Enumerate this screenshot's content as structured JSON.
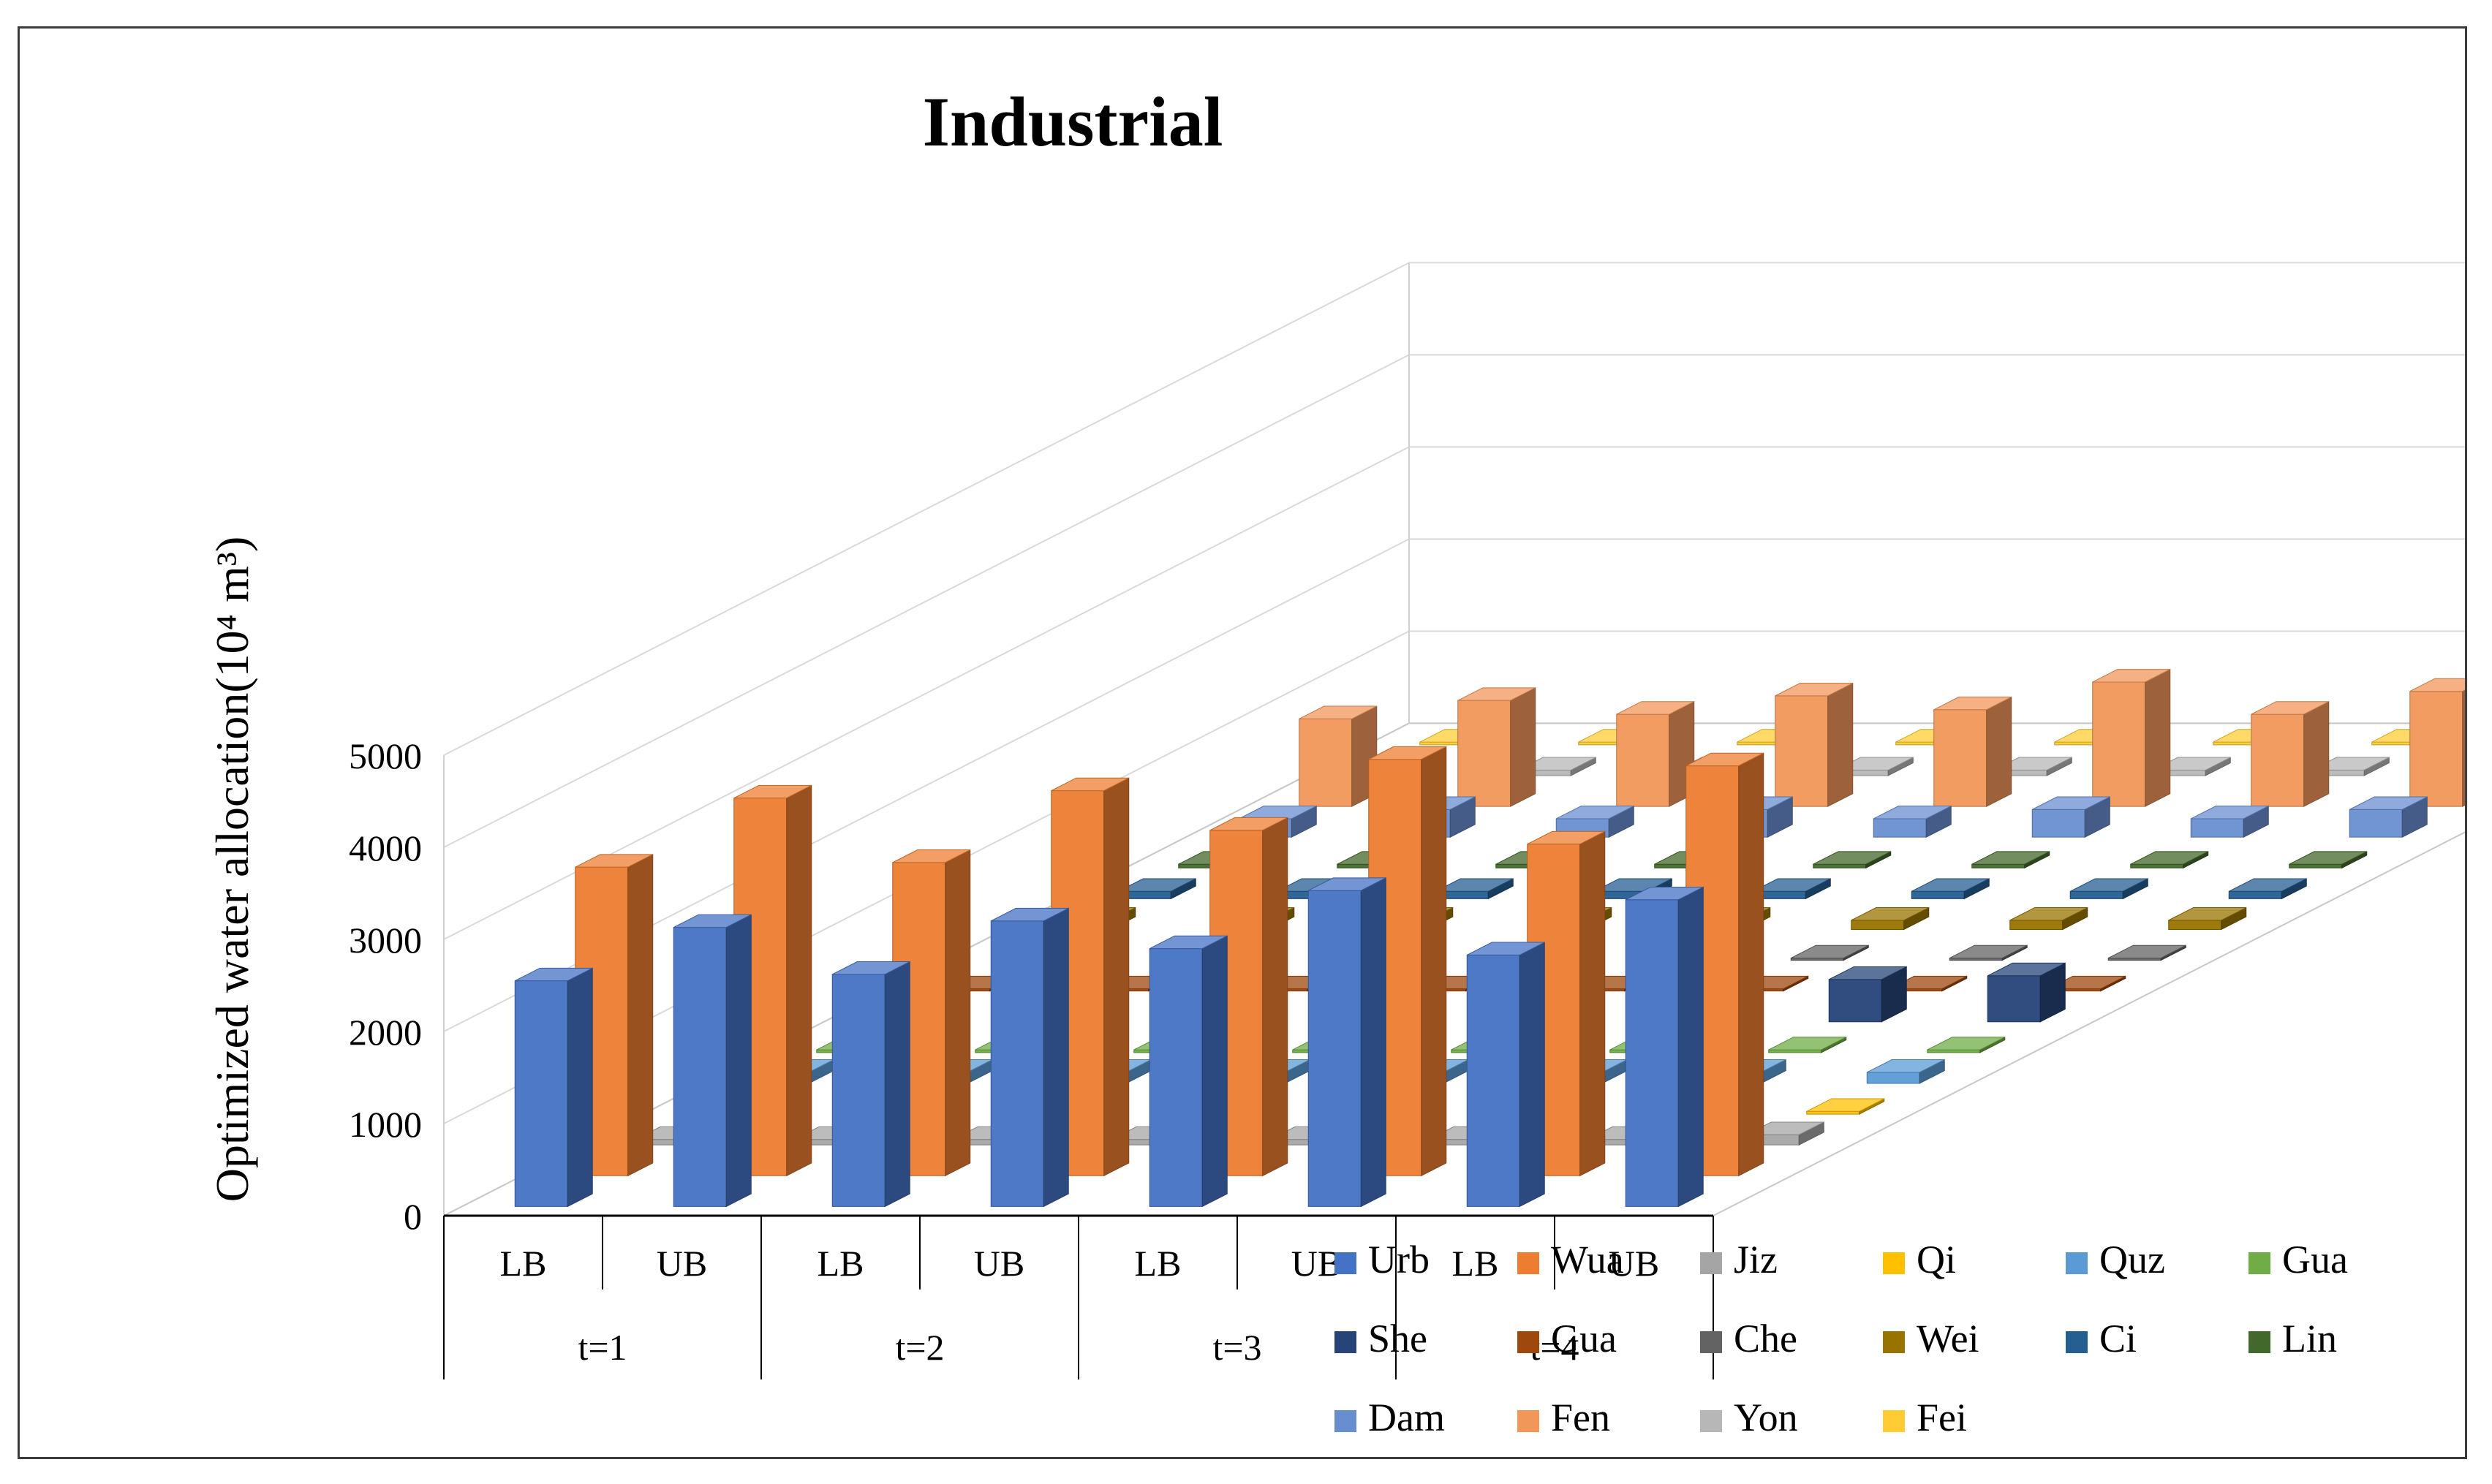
{
  "chart_data": {
    "type": "bar",
    "subtype": "3d-column",
    "title": "Industrial",
    "ylabel": "Optimized water allocation(10⁴ m³)",
    "xlabel": "",
    "ylim": [
      0,
      5000
    ],
    "yticks": [
      0,
      1000,
      2000,
      3000,
      4000,
      5000
    ],
    "periods": [
      "t=1",
      "t=2",
      "t=3",
      "t=4"
    ],
    "bounds": [
      "LB",
      "UB"
    ],
    "categories": [
      "LB",
      "UB",
      "LB",
      "UB",
      "LB",
      "UB",
      "LB",
      "UB"
    ],
    "series": [
      {
        "name": "Urb",
        "color": "#4472C4",
        "values": [
          2450,
          3030,
          2520,
          3100,
          2800,
          3430,
          2730,
          3330
        ]
      },
      {
        "name": "Wua",
        "color": "#ED7D31",
        "values": [
          3350,
          4100,
          3400,
          4180,
          3750,
          4520,
          3600,
          4450
        ]
      },
      {
        "name": "Jiz",
        "color": "#A5A5A5",
        "values": [
          60,
          60,
          60,
          60,
          60,
          60,
          60,
          110
        ]
      },
      {
        "name": "Qi",
        "color": "#FFC000",
        "values": [
          30,
          30,
          30,
          30,
          30,
          30,
          30,
          30
        ]
      },
      {
        "name": "Quz",
        "color": "#5B9BD5",
        "values": [
          120,
          120,
          120,
          120,
          120,
          120,
          120,
          120
        ]
      },
      {
        "name": "Gua",
        "color": "#70AD47",
        "values": [
          30,
          30,
          30,
          30,
          30,
          30,
          30,
          30
        ]
      },
      {
        "name": "She",
        "color": "#264478",
        "values": [
          450,
          500,
          460,
          500,
          460,
          500,
          460,
          500
        ]
      },
      {
        "name": "Gua",
        "color": "#9E480E",
        "values": [
          20,
          20,
          20,
          20,
          20,
          20,
          20,
          20
        ]
      },
      {
        "name": "Che",
        "color": "#636363",
        "values": [
          20,
          20,
          20,
          20,
          20,
          20,
          20,
          20
        ]
      },
      {
        "name": "Wei",
        "color": "#997300",
        "values": [
          100,
          100,
          100,
          100,
          100,
          100,
          100,
          100
        ]
      },
      {
        "name": "Ci",
        "color": "#255E91",
        "values": [
          80,
          80,
          80,
          80,
          80,
          80,
          80,
          80
        ]
      },
      {
        "name": "Lin",
        "color": "#43682B",
        "values": [
          40,
          40,
          40,
          40,
          40,
          40,
          40,
          40
        ]
      },
      {
        "name": "Dam",
        "color": "#698ED0",
        "values": [
          200,
          300,
          200,
          300,
          200,
          300,
          200,
          300
        ]
      },
      {
        "name": "Fen",
        "color": "#F1975A",
        "values": [
          950,
          1150,
          1000,
          1200,
          1050,
          1350,
          1000,
          1250
        ]
      },
      {
        "name": "Yon",
        "color": "#B7B7B7",
        "values": [
          60,
          60,
          60,
          60,
          60,
          60,
          60,
          120
        ]
      },
      {
        "name": "Fei",
        "color": "#FFCD33",
        "values": [
          30,
          30,
          30,
          30,
          30,
          30,
          30,
          30
        ]
      }
    ],
    "legend_position": "bottom-right",
    "grid": true
  }
}
